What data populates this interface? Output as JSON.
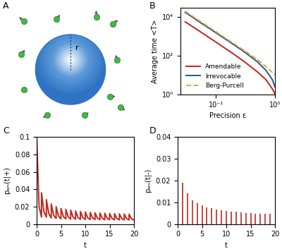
{
  "diagram": {
    "panel": "A",
    "label": "r"
  },
  "chart_data": [
    {
      "type": "line",
      "panel": "B",
      "x_label": "Precision ε",
      "y_label": "Average time <T>",
      "log": true,
      "x": [
        0.03,
        0.05,
        0.1,
        0.2,
        0.3,
        0.5,
        0.7,
        0.9,
        1.0
      ],
      "series": [
        {
          "name": "Amendable",
          "color": "#c8201e",
          "line_style": "solid",
          "values": [
            5500,
            2000,
            500,
            120,
            50,
            15,
            6,
            2,
            1.1
          ]
        },
        {
          "name": "Irrevocable",
          "color": "#1f5a8c",
          "line_style": "solid",
          "values": [
            17000,
            6000,
            1500,
            370,
            160,
            50,
            18,
            6,
            2.5
          ]
        },
        {
          "name": "Berg-Purcell",
          "color": "#f0a030",
          "line_style": "dashed",
          "values": [
            19000,
            6800,
            1700,
            420,
            185,
            65,
            28,
            14,
            10
          ]
        }
      ],
      "xlim": [
        0.025,
        1
      ],
      "ylim": [
        1,
        30000
      ],
      "xticks": [
        {
          "value": 0.1,
          "label": "10⁻¹"
        },
        {
          "value": 1,
          "label": "10⁰"
        }
      ],
      "yticks": [
        {
          "value": 1,
          "label": "10⁰"
        },
        {
          "value": 100,
          "label": "10²"
        },
        {
          "value": 10000,
          "label": "10⁴"
        }
      ],
      "legend": "lower left"
    },
    {
      "type": "line",
      "panel": "C",
      "x_label": "t",
      "y_label": "pₐₘ(t|+)",
      "x": [
        0,
        0.5,
        1,
        1,
        1.5,
        2,
        2,
        2.5,
        3,
        3,
        3.5,
        4,
        4,
        4.5,
        5,
        5,
        5.5,
        6,
        6,
        6.5,
        7,
        7,
        7.5,
        8,
        8,
        8.5,
        9,
        9,
        9.5,
        10,
        10,
        10.5,
        11,
        11,
        11.5,
        12,
        12,
        12.5,
        13,
        13,
        13.5,
        14,
        14,
        14.5,
        15,
        15,
        15.5,
        16,
        16,
        16.5,
        17,
        17,
        17.5,
        18,
        18,
        18.5,
        19,
        19,
        19.5,
        20
      ],
      "series": [
        {
          "color": "#c0281e",
          "line_style": "solid",
          "values": [
            0.1,
            0.02,
            0.008,
            0.036,
            0.014,
            0.008,
            0.028,
            0.012,
            0.007,
            0.023,
            0.01,
            0.0065,
            0.02,
            0.009,
            0.006,
            0.018,
            0.0085,
            0.006,
            0.017,
            0.008,
            0.0058,
            0.016,
            0.0078,
            0.0056,
            0.015,
            0.0075,
            0.0055,
            0.0145,
            0.0073,
            0.0054,
            0.014,
            0.0071,
            0.0053,
            0.0135,
            0.007,
            0.0052,
            0.013,
            0.0068,
            0.0051,
            0.0128,
            0.0067,
            0.005,
            0.0125,
            0.0066,
            0.005,
            0.0122,
            0.0065,
            0.0049,
            0.012,
            0.0064,
            0.0049,
            0.0118,
            0.0063,
            0.0048,
            0.0116,
            0.0062,
            0.0048,
            0.0114,
            0.0061,
            0.0047
          ]
        }
      ],
      "xlim": [
        0,
        20
      ],
      "ylim": [
        0,
        0.1
      ],
      "xticks": [
        0,
        5,
        10,
        15,
        20
      ],
      "yticks": [
        0,
        0.02,
        0.04,
        0.06,
        0.08,
        0.1
      ]
    },
    {
      "type": "stem",
      "panel": "D",
      "x_label": "t",
      "y_label": "pₐₘ(t|-)",
      "x": [
        1,
        2,
        3,
        4,
        5,
        6,
        7,
        8,
        9,
        10,
        11,
        12,
        13,
        14,
        15,
        16,
        17,
        18,
        19
      ],
      "series": [
        {
          "color": "#c0281e",
          "values": [
            0.019,
            0.014,
            0.011,
            0.0095,
            0.0085,
            0.0078,
            0.0072,
            0.0068,
            0.0064,
            0.006,
            0.0058,
            0.0056,
            0.0054,
            0.0052,
            0.005,
            0.0049,
            0.0048,
            0.0047,
            0.0046
          ]
        }
      ],
      "xlim": [
        0,
        20
      ],
      "ylim": [
        0,
        0.04
      ],
      "xticks": [
        0,
        5,
        10,
        15,
        20
      ],
      "yticks": [
        0,
        0.01,
        0.02,
        0.03,
        0.04
      ]
    }
  ]
}
